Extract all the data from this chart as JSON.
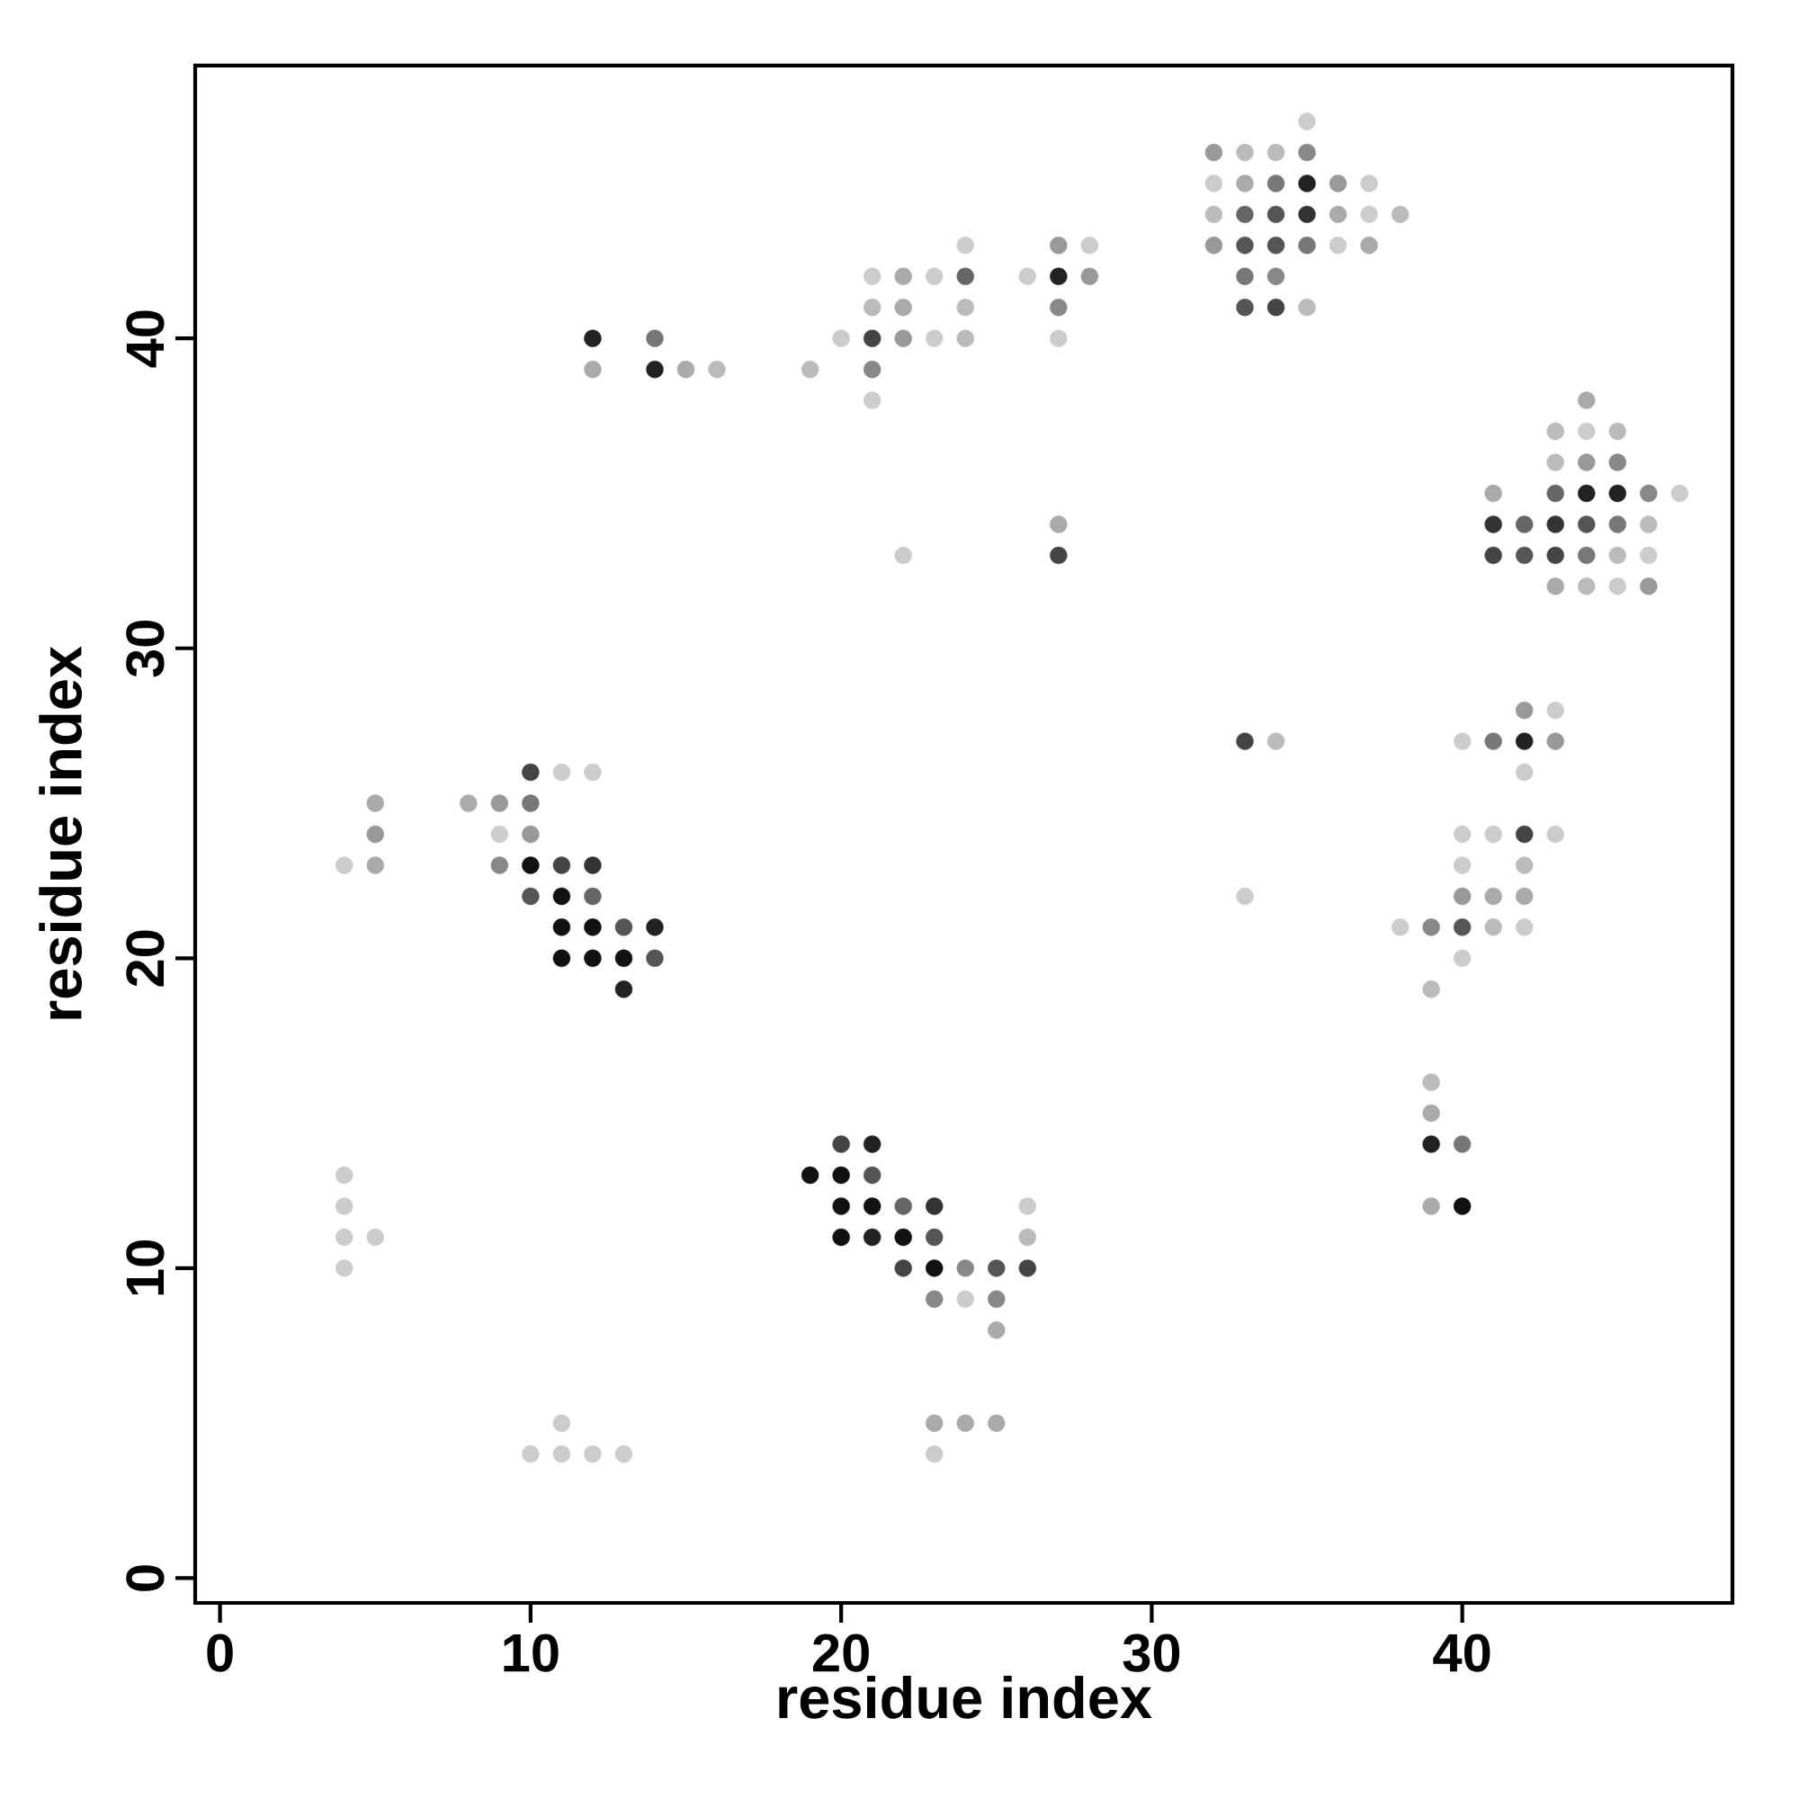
{
  "chart_data": {
    "type": "scatter",
    "xlabel": "residue index",
    "ylabel": "residue index",
    "xlim": [
      -0.8,
      48.7
    ],
    "ylim": [
      -0.8,
      48.8
    ],
    "xticks": [
      0,
      10,
      20,
      30,
      40
    ],
    "yticks": [
      0,
      10,
      20,
      30,
      40
    ],
    "marker": "circle",
    "grid": false,
    "series": [
      {
        "x": [
          4,
          4,
          4,
          4,
          4,
          5,
          5,
          5,
          5,
          8,
          9,
          9,
          9,
          10,
          10,
          10,
          10,
          10,
          10,
          11,
          11,
          11,
          11,
          11,
          11,
          11,
          12,
          12,
          12,
          12,
          12,
          12,
          12,
          12,
          13,
          13,
          13,
          13,
          14,
          14,
          14,
          14,
          15,
          16,
          19,
          19,
          20,
          20,
          20,
          20,
          20,
          21,
          21,
          21,
          21,
          21,
          21,
          21,
          21,
          21,
          22,
          22,
          22,
          22,
          22,
          22,
          22,
          23,
          23,
          23,
          23,
          23,
          23,
          23,
          23,
          24,
          24,
          24,
          24,
          24,
          24,
          24,
          25,
          25,
          25,
          25,
          26,
          26,
          26,
          26,
          27,
          27,
          27,
          27,
          27,
          27,
          28,
          28,
          32,
          32,
          32,
          32,
          33,
          33,
          33,
          33,
          33,
          33,
          33,
          33,
          34,
          34,
          34,
          34,
          34,
          34,
          34,
          35,
          35,
          35,
          35,
          35,
          35,
          36,
          36,
          36,
          37,
          37,
          37,
          38,
          38,
          39,
          39,
          39,
          39,
          39,
          39,
          40,
          40,
          40,
          40,
          40,
          40,
          40,
          40,
          41,
          41,
          41,
          41,
          41,
          41,
          41,
          42,
          42,
          42,
          42,
          42,
          42,
          42,
          42,
          42,
          43,
          43,
          43,
          43,
          43,
          43,
          43,
          43,
          43,
          44,
          44,
          44,
          44,
          44,
          44,
          44,
          45,
          45,
          45,
          45,
          45,
          45,
          46,
          46,
          46,
          46,
          47
        ],
        "values": [
          23,
          13,
          12,
          11,
          10,
          25,
          24,
          23,
          11,
          25,
          25,
          24,
          23,
          26,
          25,
          24,
          23,
          22,
          4,
          26,
          23,
          22,
          21,
          20,
          5,
          4,
          40,
          39,
          26,
          23,
          22,
          21,
          20,
          4,
          21,
          20,
          19,
          4,
          40,
          39,
          21,
          20,
          39,
          39,
          39,
          13,
          40,
          14,
          13,
          12,
          11,
          42,
          41,
          40,
          39,
          38,
          14,
          13,
          12,
          11,
          42,
          41,
          40,
          33,
          12,
          11,
          10,
          42,
          40,
          12,
          11,
          10,
          9,
          5,
          4,
          43,
          42,
          41,
          40,
          10,
          9,
          5,
          10,
          9,
          8,
          5,
          42,
          12,
          11,
          10,
          43,
          42,
          41,
          40,
          34,
          33,
          43,
          42,
          46,
          45,
          44,
          43,
          46,
          45,
          44,
          43,
          42,
          41,
          27,
          22,
          46,
          45,
          44,
          43,
          42,
          41,
          27,
          47,
          46,
          45,
          44,
          43,
          41,
          45,
          44,
          43,
          45,
          44,
          43,
          44,
          21,
          21,
          19,
          16,
          15,
          14,
          12,
          27,
          24,
          23,
          22,
          21,
          20,
          14,
          12,
          35,
          34,
          33,
          27,
          24,
          22,
          21,
          34,
          33,
          28,
          27,
          26,
          24,
          23,
          22,
          21,
          37,
          36,
          35,
          34,
          33,
          32,
          28,
          27,
          24,
          38,
          37,
          36,
          35,
          34,
          33,
          32,
          37,
          36,
          35,
          34,
          33,
          32,
          35,
          34,
          33,
          32,
          35
        ],
        "colors": [
          "#cccccc",
          "#cccccc",
          "#cccccc",
          "#cccccc",
          "#cccccc",
          "#aaaaaa",
          "#999999",
          "#aaaaaa",
          "#cccccc",
          "#aaaaaa",
          "#999999",
          "#cccccc",
          "#888888",
          "#444444",
          "#777777",
          "#999999",
          "#111111",
          "#555555",
          "#cccccc",
          "#cccccc",
          "#444444",
          "#111111",
          "#111111",
          "#111111",
          "#cccccc",
          "#cccccc",
          "#222222",
          "#aaaaaa",
          "#cccccc",
          "#333333",
          "#666666",
          "#111111",
          "#111111",
          "#cccccc",
          "#555555",
          "#111111",
          "#222222",
          "#cccccc",
          "#777777",
          "#222222",
          "#222222",
          "#555555",
          "#aaaaaa",
          "#bbbbbb",
          "#bbbbbb",
          "#111111",
          "#cccccc",
          "#444444",
          "#111111",
          "#111111",
          "#111111",
          "#cccccc",
          "#bbbbbb",
          "#444444",
          "#888888",
          "#cccccc",
          "#222222",
          "#555555",
          "#111111",
          "#222222",
          "#aaaaaa",
          "#aaaaaa",
          "#999999",
          "#cccccc",
          "#666666",
          "#111111",
          "#444444",
          "#cccccc",
          "#cccccc",
          "#333333",
          "#555555",
          "#111111",
          "#888888",
          "#aaaaaa",
          "#cccccc",
          "#cccccc",
          "#666666",
          "#bbbbbb",
          "#bbbbbb",
          "#888888",
          "#cccccc",
          "#aaaaaa",
          "#555555",
          "#888888",
          "#aaaaaa",
          "#aaaaaa",
          "#cccccc",
          "#cccccc",
          "#bbbbbb",
          "#444444",
          "#999999",
          "#222222",
          "#888888",
          "#cccccc",
          "#aaaaaa",
          "#444444",
          "#cccccc",
          "#999999",
          "#999999",
          "#cccccc",
          "#bbbbbb",
          "#999999",
          "#bbbbbb",
          "#aaaaaa",
          "#666666",
          "#555555",
          "#777777",
          "#555555",
          "#444444",
          "#cccccc",
          "#bbbbbb",
          "#777777",
          "#555555",
          "#555555",
          "#888888",
          "#444444",
          "#bbbbbb",
          "#cccccc",
          "#888888",
          "#222222",
          "#333333",
          "#777777",
          "#bbbbbb",
          "#999999",
          "#aaaaaa",
          "#cccccc",
          "#cccccc",
          "#cccccc",
          "#aaaaaa",
          "#bbbbbb",
          "#cccccc",
          "#888888",
          "#bbbbbb",
          "#bbbbbb",
          "#aaaaaa",
          "#222222",
          "#aaaaaa",
          "#cccccc",
          "#cccccc",
          "#cccccc",
          "#999999",
          "#555555",
          "#cccccc",
          "#777777",
          "#111111",
          "#aaaaaa",
          "#333333",
          "#444444",
          "#777777",
          "#cccccc",
          "#aaaaaa",
          "#bbbbbb",
          "#666666",
          "#555555",
          "#999999",
          "#222222",
          "#cccccc",
          "#444444",
          "#bbbbbb",
          "#aaaaaa",
          "#cccccc",
          "#bbbbbb",
          "#bbbbbb",
          "#666666",
          "#333333",
          "#444444",
          "#aaaaaa",
          "#cccccc",
          "#999999",
          "#cccccc",
          "#aaaaaa",
          "#cccccc",
          "#999999",
          "#222222",
          "#555555",
          "#777777",
          "#bbbbbb",
          "#bbbbbb",
          "#888888",
          "#222222",
          "#777777",
          "#bbbbbb",
          "#cccccc",
          "#888888",
          "#bbbbbb",
          "#cccccc",
          "#999999",
          "#cccccc"
        ]
      }
    ]
  }
}
